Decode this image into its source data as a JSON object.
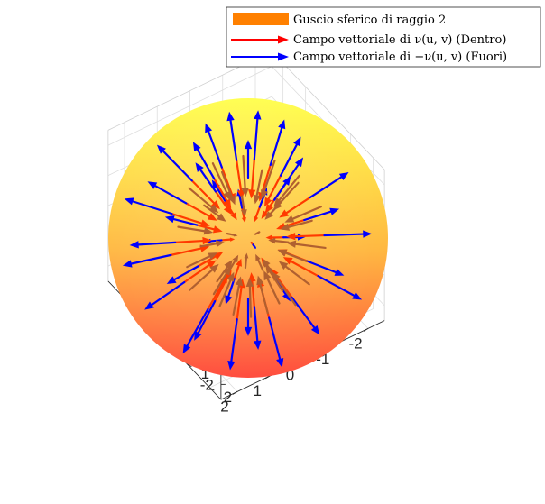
{
  "chart_data": {
    "type": "3d-quiver",
    "sphere_radius": 2,
    "axis_ranges": {
      "x": [
        -2,
        2
      ],
      "y": [
        -2,
        2
      ],
      "z": [
        -2,
        2
      ]
    },
    "x_ticks": [
      "-2",
      "-1",
      "0",
      "1",
      "2"
    ],
    "y_ticks": [
      "-2",
      "-1",
      "0",
      "1",
      "2"
    ],
    "z_ticks": [
      "-2",
      "-1",
      "0",
      "1",
      "2"
    ],
    "grid": true,
    "legend_position": "top-right",
    "colors": {
      "sphere_top": "#ffff40",
      "sphere_bottom": "#ff4a3c",
      "inward": "#ff0000",
      "outward": "#0000ff"
    },
    "series": [
      {
        "name": "Guscio sferico di raggio 2",
        "kind": "surface",
        "color": "#ff8000"
      },
      {
        "name": "Campo vettoriale di ν(u, v) (Dentro)",
        "kind": "arrows-inward",
        "color": "#ff0000"
      },
      {
        "name": "Campo vettoriale di −ν(u, v) (Fuori)",
        "kind": "arrows-outward",
        "color": "#0000ff"
      }
    ]
  }
}
